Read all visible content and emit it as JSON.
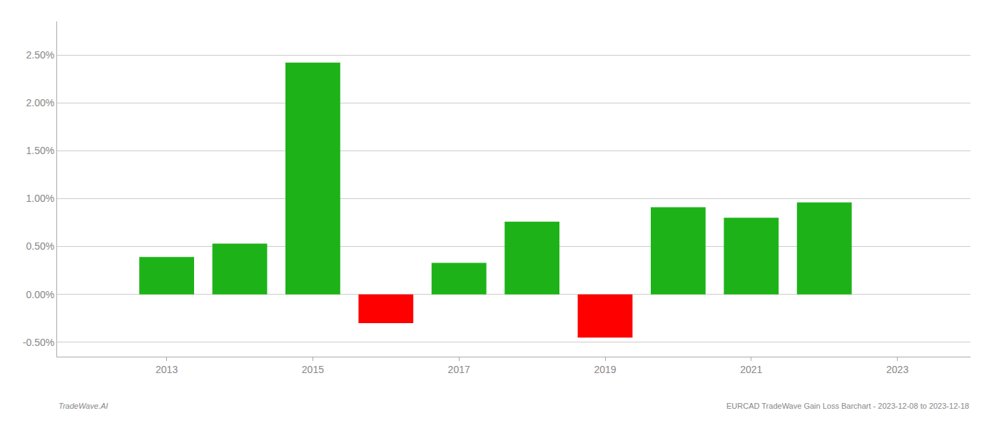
{
  "chart_data": {
    "type": "bar",
    "x": [
      2013,
      2014,
      2015,
      2016,
      2017,
      2018,
      2019,
      2020,
      2021,
      2022
    ],
    "values": [
      0.0039,
      0.0053,
      0.0242,
      -0.003,
      0.0033,
      0.0076,
      -0.0045,
      0.0091,
      0.008,
      0.0096
    ],
    "colors": [
      "#1db318",
      "#1db318",
      "#1db318",
      "#ff0000",
      "#1db318",
      "#1db318",
      "#ff0000",
      "#1db318",
      "#1db318",
      "#1db318"
    ],
    "xlim": [
      2011.5,
      2024.0
    ],
    "xticks": [
      2013,
      2015,
      2017,
      2019,
      2021,
      2023
    ],
    "ylim": [
      -0.0065,
      0.0285
    ],
    "yticks": [
      {
        "value": -0.005,
        "label": "-0.50%"
      },
      {
        "value": 0.0,
        "label": "0.00%"
      },
      {
        "value": 0.005,
        "label": "0.50%"
      },
      {
        "value": 0.01,
        "label": "1.00%"
      },
      {
        "value": 0.015,
        "label": "1.50%"
      },
      {
        "value": 0.02,
        "label": "2.00%"
      },
      {
        "value": 0.025,
        "label": "2.50%"
      }
    ],
    "grid": true,
    "annotations": [
      "TradeWave.AI",
      "EURCAD TradeWave Gain Loss Barchart - 2023-12-08 to 2023-12-18"
    ]
  }
}
